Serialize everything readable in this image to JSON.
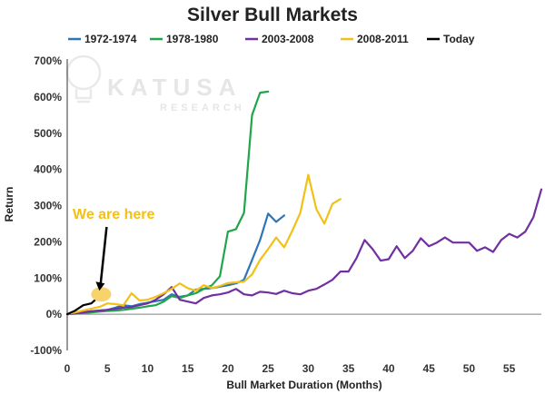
{
  "chart_data": {
    "type": "line",
    "title": "Silver Bull Markets",
    "xlabel": "Bull Market Duration  (Months)",
    "ylabel": "Return",
    "xlim": [
      0,
      59
    ],
    "ylim": [
      -100,
      700
    ],
    "x_ticks": [
      0,
      5,
      10,
      15,
      20,
      25,
      30,
      35,
      40,
      45,
      50,
      55
    ],
    "y_ticks": [
      -100,
      0,
      100,
      200,
      300,
      400,
      500,
      600,
      700
    ],
    "y_tick_labels": [
      "-100%",
      "0%",
      "100%",
      "200%",
      "300%",
      "400%",
      "500%",
      "600%",
      "700%"
    ],
    "grid": false,
    "legend_position": "top",
    "series": [
      {
        "name": "1972-1974",
        "color": "#2e75b6",
        "x": [
          0,
          1,
          2,
          3,
          4,
          5,
          6,
          7,
          8,
          9,
          10,
          11,
          12,
          13,
          14,
          15,
          16,
          17,
          18,
          19,
          20,
          21,
          22,
          23,
          24,
          25,
          26,
          27
        ],
        "y": [
          0,
          3,
          6,
          8,
          10,
          12,
          18,
          25,
          22,
          28,
          32,
          36,
          40,
          55,
          48,
          52,
          68,
          70,
          72,
          76,
          80,
          85,
          95,
          150,
          205,
          278,
          255,
          273
        ]
      },
      {
        "name": "1978-1980",
        "color": "#1fa64a",
        "x": [
          0,
          1,
          2,
          3,
          4,
          5,
          6,
          7,
          8,
          9,
          10,
          11,
          12,
          13,
          14,
          15,
          16,
          17,
          18,
          19,
          20,
          21,
          22,
          23,
          24,
          25
        ],
        "y": [
          0,
          2,
          3,
          5,
          7,
          9,
          10,
          12,
          15,
          18,
          22,
          25,
          35,
          50,
          45,
          52,
          58,
          70,
          80,
          105,
          228,
          235,
          280,
          550,
          612,
          615
        ]
      },
      {
        "name": "2003-2008",
        "color": "#7030a0",
        "x": [
          0,
          1,
          2,
          3,
          4,
          5,
          6,
          7,
          8,
          9,
          10,
          11,
          12,
          13,
          14,
          15,
          16,
          17,
          18,
          19,
          20,
          21,
          22,
          23,
          24,
          25,
          26,
          27,
          28,
          29,
          30,
          31,
          32,
          33,
          34,
          35,
          36,
          37,
          38,
          39,
          40,
          41,
          42,
          43,
          44,
          45,
          46,
          47,
          48,
          49,
          50,
          51,
          52,
          53,
          54,
          55,
          56,
          57,
          58,
          59
        ],
        "y": [
          0,
          2,
          5,
          8,
          10,
          12,
          15,
          18,
          20,
          25,
          30,
          40,
          55,
          75,
          40,
          35,
          30,
          45,
          52,
          55,
          60,
          70,
          55,
          52,
          62,
          60,
          56,
          65,
          58,
          55,
          65,
          70,
          82,
          95,
          118,
          118,
          155,
          205,
          180,
          148,
          152,
          188,
          155,
          175,
          210,
          188,
          198,
          212,
          198,
          198,
          198,
          175,
          185,
          172,
          205,
          222,
          212,
          228,
          268,
          345
        ]
      },
      {
        "name": "2008-2011",
        "color": "#f2c016",
        "x": [
          0,
          1,
          2,
          3,
          4,
          5,
          6,
          7,
          8,
          9,
          10,
          11,
          12,
          13,
          14,
          15,
          16,
          17,
          18,
          19,
          20,
          21,
          22,
          23,
          24,
          25,
          26,
          27,
          28,
          29,
          30,
          31,
          32,
          33,
          34
        ],
        "y": [
          0,
          5,
          10,
          15,
          20,
          30,
          28,
          25,
          58,
          38,
          40,
          48,
          58,
          70,
          85,
          72,
          65,
          80,
          72,
          78,
          86,
          88,
          90,
          110,
          150,
          180,
          212,
          185,
          230,
          280,
          385,
          290,
          250,
          305,
          318
        ]
      },
      {
        "name": "Today",
        "color": "#000000",
        "x": [
          0,
          1,
          2,
          3,
          4
        ],
        "y": [
          0,
          10,
          25,
          30,
          50
        ]
      }
    ],
    "annotations": [
      {
        "text": "We are here",
        "x": 4,
        "y": 60
      }
    ]
  },
  "watermark": {
    "brand": "KATUSA",
    "sub": "RESEARCH"
  },
  "colors": {
    "axis": "#333333",
    "zero_line": "#999999",
    "marker": "#f7d36b",
    "annotation": "#f2c016"
  }
}
